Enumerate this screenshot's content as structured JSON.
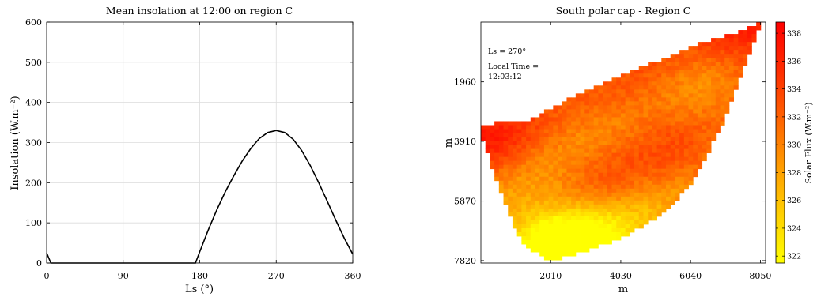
{
  "chart_data": [
    {
      "type": "line",
      "title": "Mean insolation at 12:00 on region C",
      "xlabel": "Ls (°)",
      "ylabel": "Insolation (W.m⁻²)",
      "xlim": [
        0,
        360
      ],
      "ylim": [
        0,
        600
      ],
      "xticks": [
        0,
        90,
        180,
        270,
        360
      ],
      "yticks": [
        0,
        100,
        200,
        300,
        400,
        500,
        600
      ],
      "grid": true,
      "series": [
        {
          "x": [
            0,
            5,
            10,
            30,
            60,
            90,
            120,
            150,
            172,
            175,
            180,
            190,
            200,
            210,
            220,
            230,
            240,
            250,
            260,
            270,
            280,
            290,
            300,
            310,
            320,
            330,
            340,
            350,
            360
          ],
          "y": [
            25,
            0,
            0,
            0,
            0,
            0,
            0,
            0,
            0,
            0,
            28,
            82,
            132,
            177,
            217,
            254,
            285,
            310,
            325,
            330,
            325,
            308,
            280,
            243,
            200,
            154,
            107,
            62,
            22
          ]
        }
      ],
      "color": "#000000"
    },
    {
      "type": "heatmap",
      "title": "South polar cap - Region C",
      "xlabel": "m",
      "ylabel": "m",
      "xticks": [
        2010,
        4030,
        6040,
        8050
      ],
      "yticks": [
        1960,
        3910,
        5870,
        7820
      ],
      "xlim": [
        0,
        8200
      ],
      "ylim": [
        0,
        7900
      ],
      "annotation_lines": [
        "Ls = 270°",
        "Local Time =",
        "12:03:12"
      ],
      "colorbar": {
        "label": "Solar Flux (W.m⁻²)",
        "ticks": [
          322,
          324,
          326,
          328,
          330,
          332,
          334,
          336,
          338
        ],
        "range": [
          321.5,
          338.8
        ],
        "colormap": [
          "#ffff00",
          "#ffd000",
          "#ff9c00",
          "#ff6200",
          "#ff2c00",
          "#ff0000"
        ]
      },
      "region_outline": [
        [
          8150,
          0
        ],
        [
          7950,
          400
        ],
        [
          7600,
          1500
        ],
        [
          7300,
          2400
        ],
        [
          6900,
          3500
        ],
        [
          6450,
          4500
        ],
        [
          6000,
          5400
        ],
        [
          5400,
          6100
        ],
        [
          4700,
          6700
        ],
        [
          3800,
          7200
        ],
        [
          2900,
          7550
        ],
        [
          2050,
          7850
        ],
        [
          1300,
          7400
        ],
        [
          900,
          6600
        ],
        [
          450,
          5200
        ],
        [
          0,
          3700
        ],
        [
          0,
          3450
        ],
        [
          500,
          3250
        ],
        [
          1300,
          3250
        ],
        [
          2000,
          2850
        ],
        [
          2900,
          2300
        ],
        [
          3900,
          1800
        ],
        [
          5000,
          1300
        ],
        [
          6200,
          750
        ],
        [
          7300,
          350
        ],
        [
          8150,
          0
        ]
      ],
      "value_field": {
        "base": 330.5,
        "bright_spots": [
          [
            7800,
            300,
            6
          ],
          [
            100,
            3600,
            5
          ],
          [
            3800,
            5800,
            3
          ],
          [
            6300,
            4300,
            2.5
          ],
          [
            5000,
            2600,
            2
          ]
        ],
        "dim_spots": [
          [
            2000,
            7700,
            -7
          ],
          [
            2800,
            7200,
            -5
          ],
          [
            4700,
            6500,
            -3
          ],
          [
            3600,
            7000,
            -3
          ],
          [
            6500,
            3200,
            -2.5
          ],
          [
            1500,
            6800,
            -2.5
          ]
        ]
      }
    }
  ]
}
